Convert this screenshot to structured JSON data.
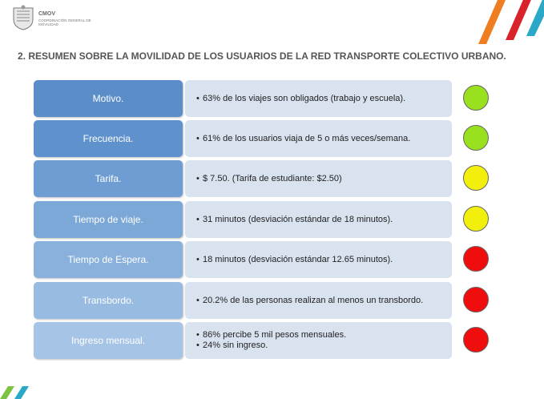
{
  "header": {
    "org_short": "CMOV",
    "org_full": "COORDINACIÓN GENERAL DE MOVILIDAD"
  },
  "title": "2. RESUMEN SOBRE LA MOVILIDAD DE LOS USUARIOS DE LA RED TRANSPORTE COLECTIVO URBANO.",
  "rows": [
    {
      "label": "Motivo.",
      "color": "#5b8ec9",
      "lines": [
        "63% de los viajes son obligados (trabajo y escuela)."
      ],
      "status": "#99e01e"
    },
    {
      "label": "Frecuencia.",
      "color": "#5f92cc",
      "lines": [
        "61% de los usuarios viaja de 5 o más veces/semana."
      ],
      "status": "#99e01e"
    },
    {
      "label": "Tarifa.",
      "color": "#6d9dd2",
      "lines": [
        "$ 7.50. (Tarifa de estudiante: $2.50)"
      ],
      "status": "#f2ef0c"
    },
    {
      "label": "Tiempo de viaje.",
      "color": "#7ca8d8",
      "lines": [
        "31 minutos (desviación estándar de 18 minutos)."
      ],
      "status": "#f2ef0c"
    },
    {
      "label": "Tiempo de Espera.",
      "color": "#89b1dc",
      "lines": [
        "18 minutos (desviación estándar 12.65 minutos)."
      ],
      "status": "#f00d0d"
    },
    {
      "label": "Transbordo.",
      "color": "#97bbe1",
      "lines": [
        "20.2% de las personas realizan al menos un transbordo."
      ],
      "status": "#f00d0d"
    },
    {
      "label": "Ingreso mensual.",
      "color": "#a6c5e6",
      "lines": [
        "86% percibe 5 mil pesos mensuales.",
        "24% sin ingreso."
      ],
      "status": "#f00d0d"
    }
  ]
}
